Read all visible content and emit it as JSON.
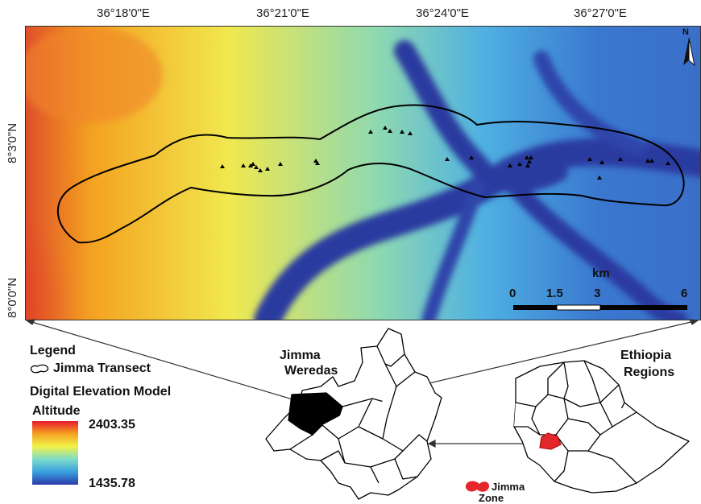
{
  "top_labels": [
    "36°18'0\"E",
    "36°21'0\"E",
    "36°24'0\"E",
    "36°27'0\"E"
  ],
  "left_labels": [
    "8°3'0\"N",
    "8°0'0\"N"
  ],
  "north_label": "N",
  "scale": {
    "unit": "km",
    "ticks": [
      "0",
      "1.5",
      "3",
      "6"
    ]
  },
  "legend": {
    "title": "Legend",
    "transect": "Jimma Transect",
    "dem": "Digital Elevation Model",
    "altitude": "Altitude",
    "max": "2403.35",
    "min": "1435.78",
    "ramp_colors": [
      "#e8192c",
      "#f4a321",
      "#f2f24a",
      "#7ddcc8",
      "#3aa0e0",
      "#2a3aa8"
    ]
  },
  "weredas_label": [
    "Jimma",
    "Weredas"
  ],
  "regions_label": [
    "Ethiopia",
    "Regions"
  ],
  "zone_label": [
    "Jimma",
    "Zone"
  ]
}
